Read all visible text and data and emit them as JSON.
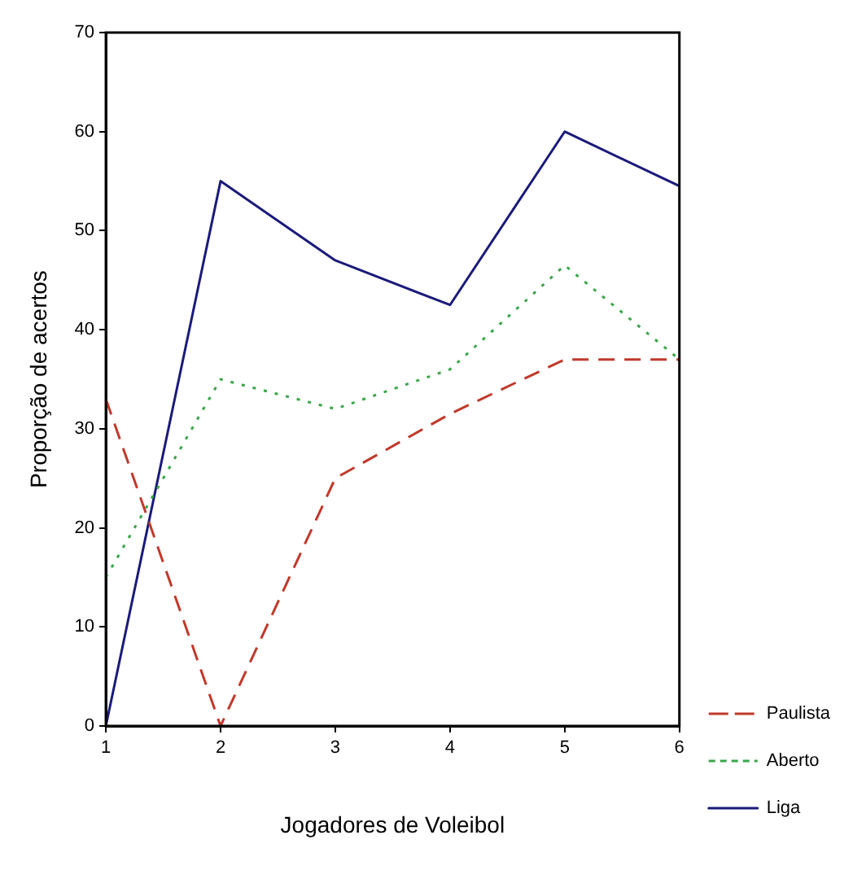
{
  "chart_data": {
    "type": "line",
    "xlabel": "Jogadores de Voleibol",
    "ylabel": "Proporção de acertos",
    "x": [
      1,
      2,
      3,
      4,
      5,
      6
    ],
    "xlim": [
      1,
      6
    ],
    "xticks": [
      1,
      2,
      3,
      4,
      5,
      6
    ],
    "ylim": [
      0,
      70
    ],
    "yticks": [
      0,
      10,
      20,
      30,
      40,
      50,
      60,
      70
    ],
    "grid": false,
    "legend": "right",
    "marker": "none",
    "series": [
      {
        "name": "Paulista",
        "color": "#c0392b",
        "line_style": "dashed",
        "values": [
          33,
          0,
          25,
          31.5,
          37,
          37
        ]
      },
      {
        "name": "Aberto",
        "color": "#3aa64a",
        "line_style": "dotted",
        "values": [
          15,
          35,
          32,
          36,
          46.5,
          37
        ]
      },
      {
        "name": "Liga",
        "color": "#1a1a7a",
        "line_style": "solid",
        "values": [
          0,
          55,
          47,
          42.5,
          60,
          54.5
        ]
      }
    ]
  }
}
